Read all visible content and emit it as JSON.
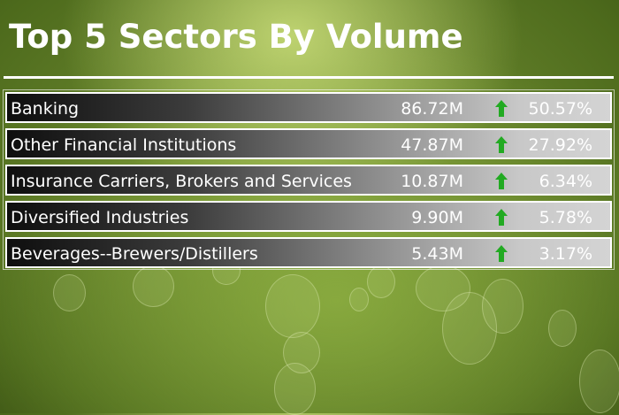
{
  "title": "Top 5 Sectors By Volume",
  "colors": {
    "arrow_up": "#22aa22",
    "background": "#6a8a2c"
  },
  "rows": [
    {
      "sector": "Banking",
      "volume": "86.72M",
      "trend_icon": "arrow-up-icon",
      "percent": "50.57%"
    },
    {
      "sector": "Other Financial Institutions",
      "volume": "47.87M",
      "trend_icon": "arrow-up-icon",
      "percent": "27.92%"
    },
    {
      "sector": "Insurance Carriers, Brokers and Services",
      "volume": "10.87M",
      "trend_icon": "arrow-up-icon",
      "percent": "6.34%"
    },
    {
      "sector": "Diversified Industries",
      "volume": "9.90M",
      "trend_icon": "arrow-up-icon",
      "percent": "5.78%"
    },
    {
      "sector": "Beverages--Brewers/Distillers",
      "volume": "5.43M",
      "trend_icon": "arrow-up-icon",
      "percent": "3.17%"
    }
  ]
}
